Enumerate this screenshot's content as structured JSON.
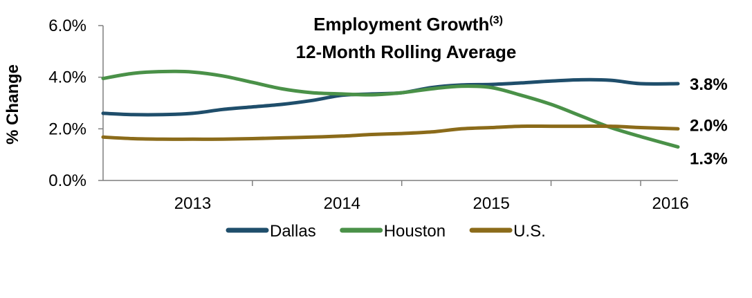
{
  "chart_data": {
    "type": "line",
    "title": "Employment Growth",
    "title_superscript": "(3)",
    "subtitle": "12-Month Rolling Average",
    "xlabel": "",
    "ylabel": "% Change",
    "ylim": [
      0,
      6
    ],
    "y_ticks": [
      "0.0%",
      "2.0%",
      "4.0%",
      "6.0%"
    ],
    "x_ticks": [
      "2013",
      "2014",
      "2015",
      "2016"
    ],
    "x_range": [
      2012.4,
      2016.25
    ],
    "legend_position": "bottom",
    "grid": false,
    "series": [
      {
        "name": "Dallas",
        "color": "#1f4e6b",
        "end_label": "3.8%",
        "x": [
          2012.4,
          2012.6,
          2012.8,
          2013.0,
          2013.2,
          2013.4,
          2013.6,
          2013.8,
          2014.0,
          2014.2,
          2014.4,
          2014.6,
          2014.8,
          2015.0,
          2015.2,
          2015.4,
          2015.6,
          2015.8,
          2016.0,
          2016.25
        ],
        "values": [
          2.6,
          2.55,
          2.55,
          2.6,
          2.75,
          2.85,
          2.95,
          3.1,
          3.3,
          3.35,
          3.4,
          3.6,
          3.7,
          3.72,
          3.78,
          3.85,
          3.9,
          3.88,
          3.75,
          3.75
        ]
      },
      {
        "name": "Houston",
        "color": "#4a9148",
        "end_label": "1.3%",
        "x": [
          2012.4,
          2012.6,
          2012.8,
          2013.0,
          2013.2,
          2013.4,
          2013.6,
          2013.8,
          2014.0,
          2014.2,
          2014.4,
          2014.6,
          2014.8,
          2015.0,
          2015.2,
          2015.4,
          2015.6,
          2015.8,
          2016.0,
          2016.25
        ],
        "values": [
          3.95,
          4.15,
          4.22,
          4.2,
          4.05,
          3.8,
          3.55,
          3.4,
          3.35,
          3.32,
          3.4,
          3.55,
          3.65,
          3.6,
          3.3,
          2.95,
          2.5,
          2.05,
          1.7,
          1.3
        ]
      },
      {
        "name": "U.S.",
        "color": "#8b6b1a",
        "end_label": "2.0%",
        "x": [
          2012.4,
          2012.6,
          2012.8,
          2013.0,
          2013.2,
          2013.4,
          2013.6,
          2013.8,
          2014.0,
          2014.2,
          2014.4,
          2014.6,
          2014.8,
          2015.0,
          2015.2,
          2015.4,
          2015.6,
          2015.8,
          2016.0,
          2016.25
        ],
        "values": [
          1.68,
          1.62,
          1.6,
          1.6,
          1.6,
          1.62,
          1.65,
          1.68,
          1.72,
          1.78,
          1.82,
          1.88,
          2.0,
          2.05,
          2.1,
          2.1,
          2.1,
          2.1,
          2.05,
          2.0
        ]
      }
    ]
  }
}
